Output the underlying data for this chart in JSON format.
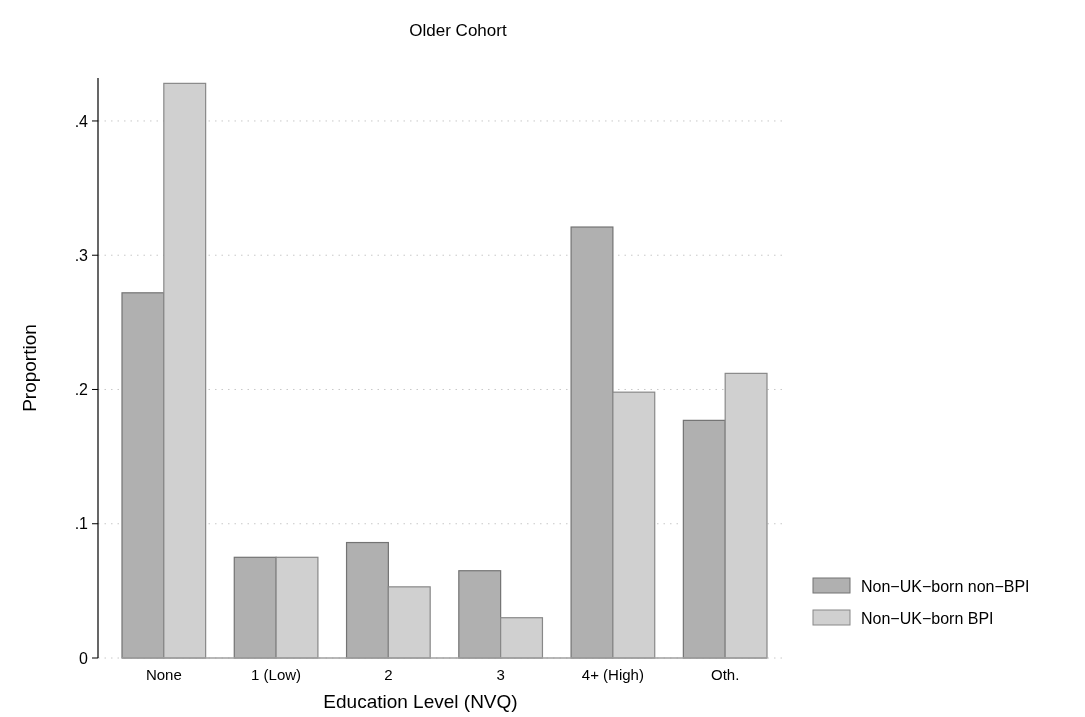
{
  "chart_data": {
    "type": "bar",
    "title": "Older Cohort",
    "xlabel": "Education Level (NVQ)",
    "ylabel": "Proportion",
    "categories": [
      "None",
      "1 (Low)",
      "2",
      "3",
      "4+ (High)",
      "Oth."
    ],
    "series": [
      {
        "name": "Non−UK−born non−BPI",
        "color": "#b0b0b0",
        "values": [
          0.272,
          0.075,
          0.086,
          0.065,
          0.321,
          0.177
        ]
      },
      {
        "name": "Non−UK−born BPI",
        "color": "#d0d0d0",
        "values": [
          0.428,
          0.075,
          0.053,
          0.03,
          0.198,
          0.212
        ]
      }
    ],
    "ylim": [
      0,
      0.432
    ],
    "yticks": [
      0,
      {
        "value": 0.1,
        "label": ".1"
      },
      {
        "value": 0.2,
        "label": ".2"
      },
      {
        "value": 0.3,
        "label": ".3"
      },
      {
        "value": 0.4,
        "label": ".4"
      }
    ],
    "grid": "y",
    "legend": "right"
  }
}
